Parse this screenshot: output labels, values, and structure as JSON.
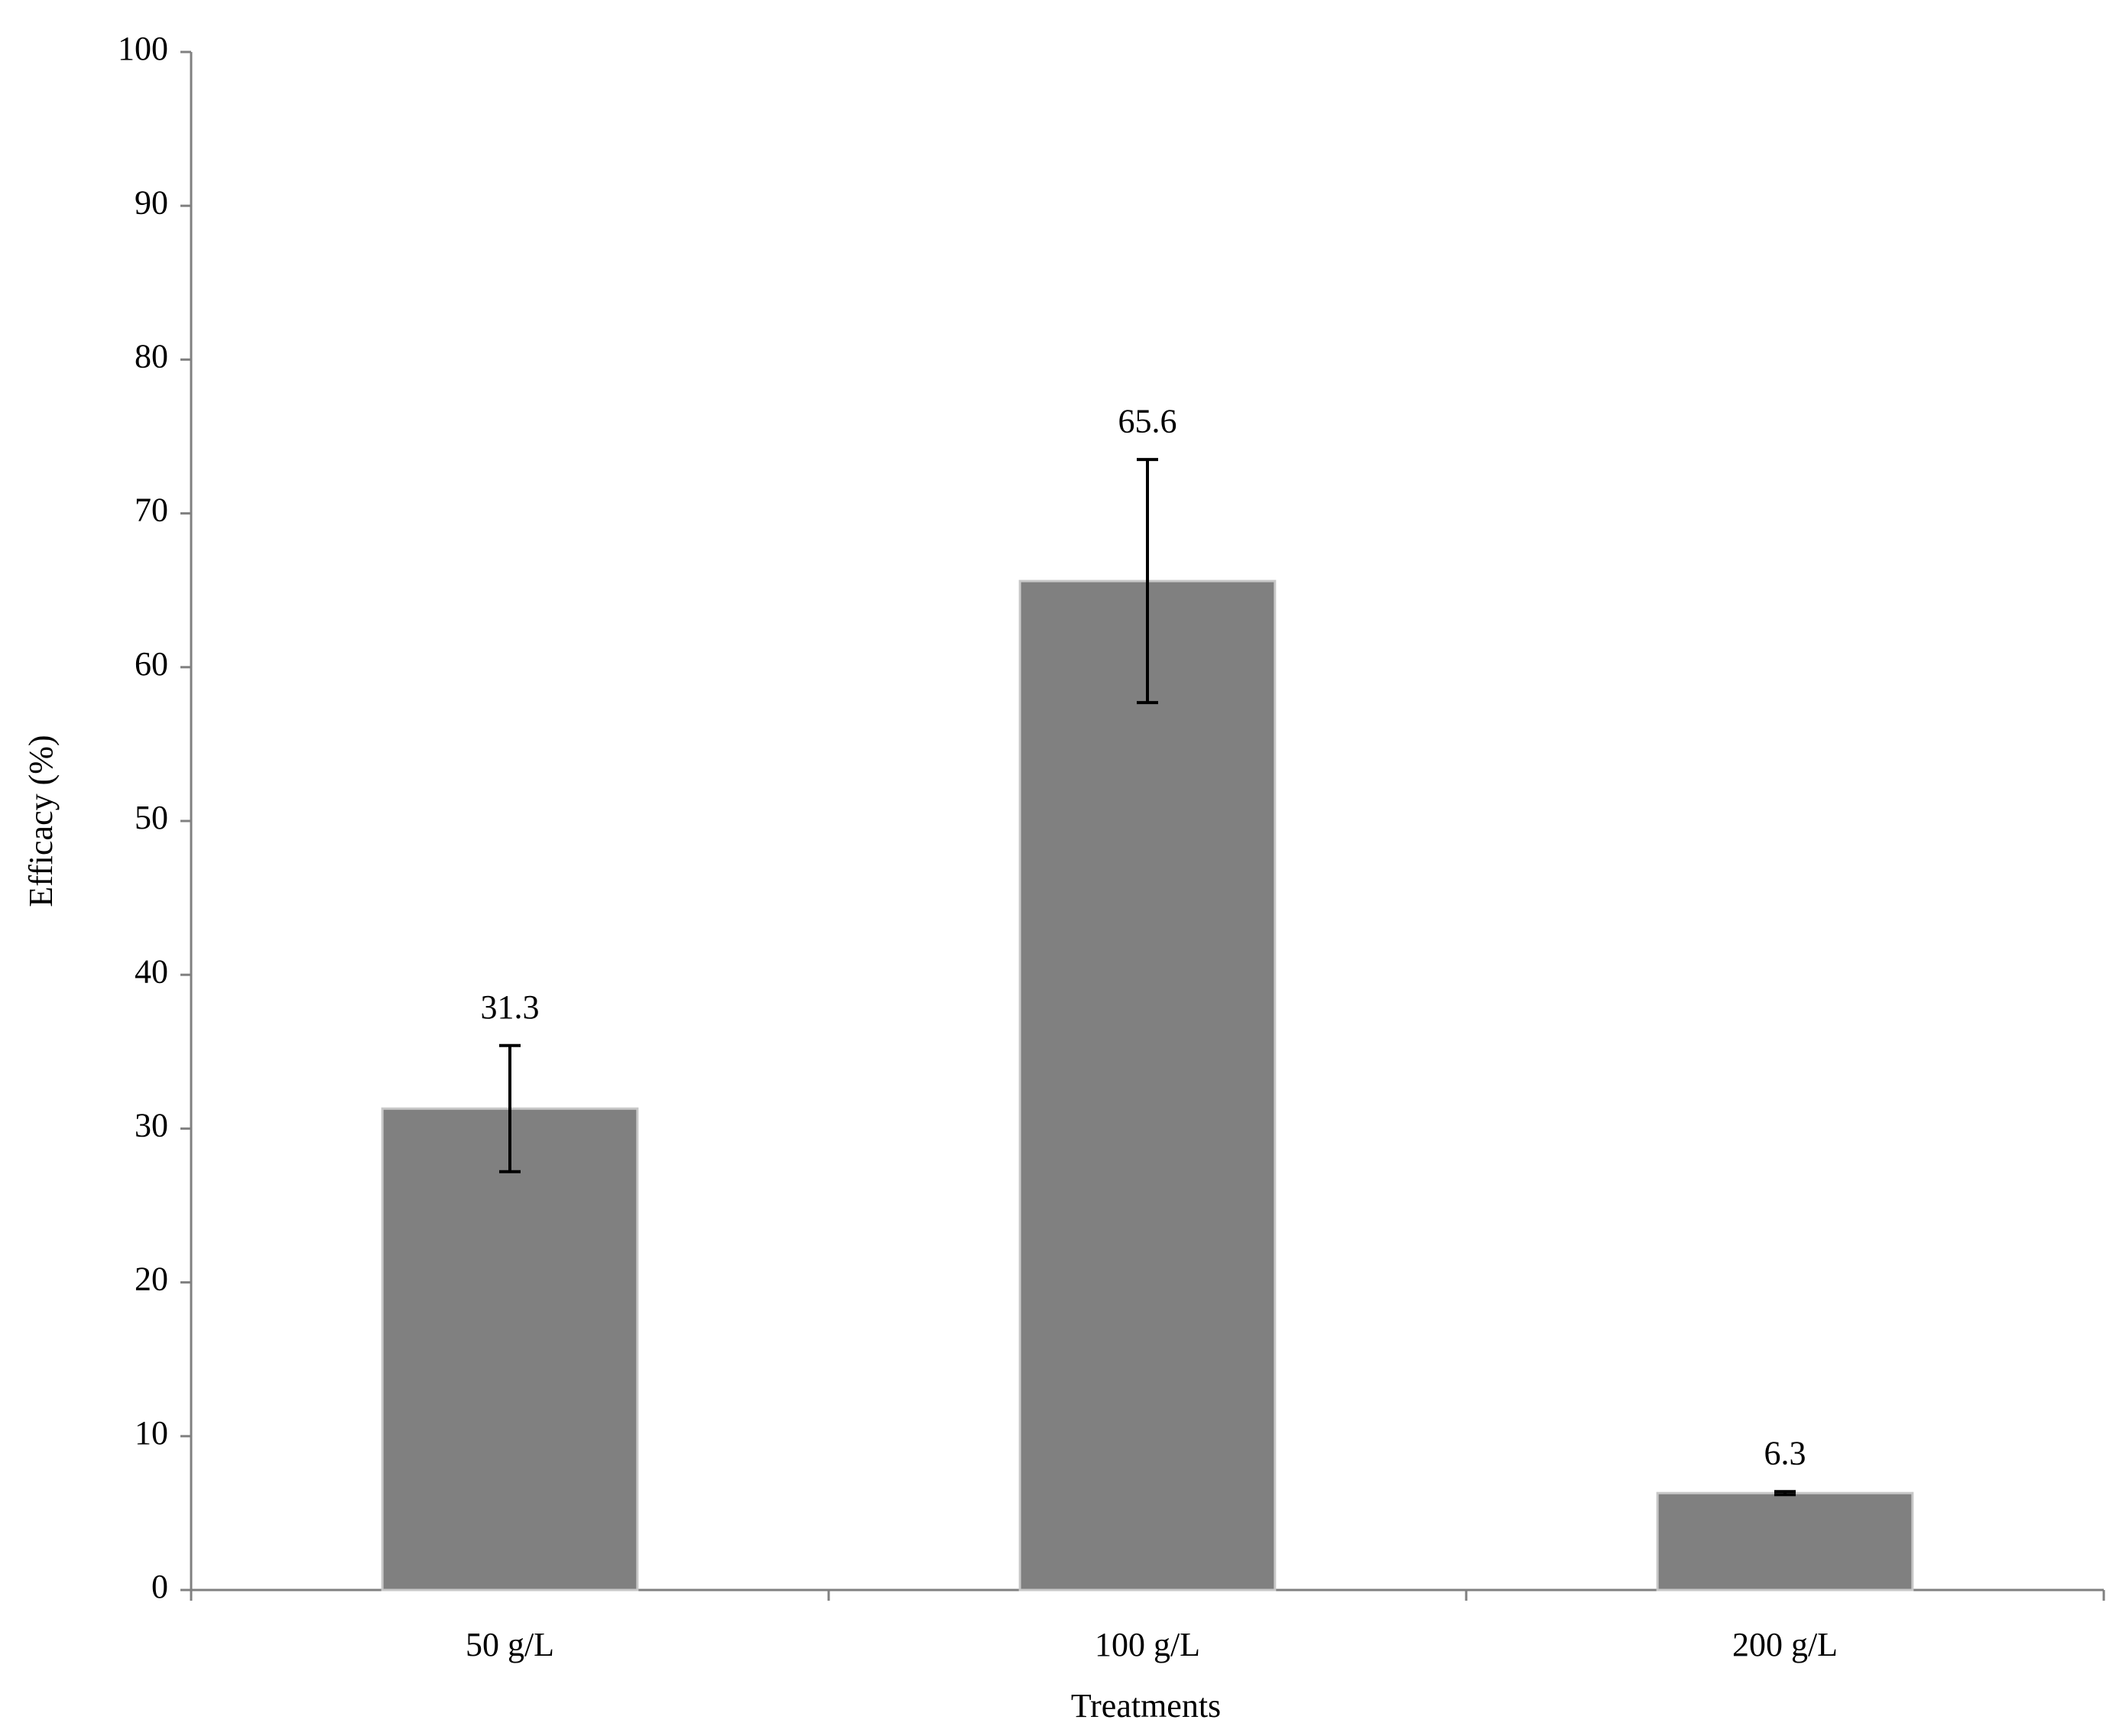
{
  "chart_data": {
    "type": "bar",
    "x_label": "Treatments",
    "y_label": "Efficacy (%)",
    "categories": [
      "50 g/L",
      "100 g/L",
      "200 g/L"
    ],
    "values": [
      31.3,
      65.6,
      6.3
    ],
    "errors": [
      4.1,
      7.9,
      0.1
    ],
    "color": "#808080",
    "ylim": [
      0,
      100
    ],
    "yticks": [
      0,
      10,
      20,
      30,
      40,
      50,
      60,
      70,
      80,
      90,
      100
    ],
    "grid": false
  }
}
